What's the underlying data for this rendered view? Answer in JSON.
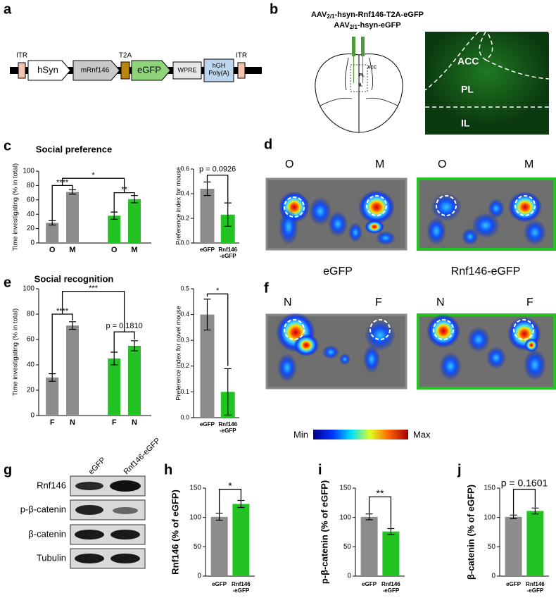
{
  "figure": {
    "panel_labels": [
      "a",
      "b",
      "c",
      "d",
      "e",
      "f",
      "g",
      "h",
      "i",
      "j"
    ],
    "a": {
      "elements": [
        "ITR",
        "hSyn",
        "mRnf146",
        "T2A",
        "eGFP",
        "WPRE",
        "hGH\nPoly(A)",
        "ITR"
      ]
    },
    "b": {
      "vectors": [
        {
          "prefix": "AAV",
          "sub": "2/1",
          "suffix": "-hsyn-Rnf146-T2A-eGFP"
        },
        {
          "prefix": "AAV",
          "sub": "2/1",
          "suffix": "-hsyn-eGFP"
        }
      ],
      "atlas_labels": [
        "ACC",
        "PL",
        "IL"
      ],
      "image_labels": [
        "ACC",
        "PL",
        "IL"
      ]
    },
    "d": {
      "labels": [
        "O",
        "M",
        "O",
        "M"
      ]
    },
    "f": {
      "groups": [
        "eGFP",
        "Rnf146-eGFP"
      ],
      "labels": [
        "N",
        "F",
        "N",
        "F"
      ],
      "colorbar": [
        "Min",
        "Max"
      ]
    },
    "g": {
      "lanes": [
        "eGFP",
        "Rnf146-eGFP"
      ],
      "rows": [
        "Rnf146",
        "p-β-catenin",
        "β-catenin",
        "Tubulin"
      ]
    }
  },
  "chart_data": [
    {
      "type": "bar",
      "title": "Social preference",
      "y_label": "Time investigating (% in total)",
      "categories": [
        "O",
        "M",
        "O",
        "M"
      ],
      "values": [
        28,
        71,
        38,
        61
      ],
      "errors": [
        3,
        3,
        5,
        5
      ],
      "colors": [
        "#8c8c8c",
        "#8c8c8c",
        "#22c322",
        "#22c322"
      ],
      "ylim": [
        0,
        100
      ],
      "yticks": [
        0,
        20,
        40,
        60,
        80,
        100
      ],
      "annotations": [
        "****",
        "**",
        "*"
      ]
    },
    {
      "type": "bar",
      "y_label": "Preference index for mouse",
      "categories": [
        "eGFP",
        "Rnf146\n-eGFP"
      ],
      "values": [
        0.44,
        0.23
      ],
      "errors": [
        0.055,
        0.095
      ],
      "colors": [
        "#8c8c8c",
        "#22c322"
      ],
      "ylim": [
        0,
        0.6
      ],
      "yticks": [
        {
          "value": 0,
          "label": "0.0"
        },
        0.2,
        0.4,
        0.6
      ],
      "annotations": [
        "p = 0.0926"
      ]
    },
    {
      "type": "bar",
      "title": "Social recognition",
      "y_label": "Time investigating (% in total)",
      "categories": [
        "F",
        "N",
        "F",
        "N"
      ],
      "values": [
        30,
        71,
        45,
        55
      ],
      "errors": [
        3,
        3,
        5,
        4
      ],
      "colors": [
        "#8c8c8c",
        "#8c8c8c",
        "#22c322",
        "#22c322"
      ],
      "ylim": [
        0,
        100
      ],
      "yticks": [
        0,
        20,
        40,
        60,
        80,
        100
      ],
      "annotations": [
        "****",
        "***",
        "p = 0.1810"
      ]
    },
    {
      "type": "bar",
      "y_label": "Preference index for novel mouse",
      "categories": [
        "eGFP",
        "Rnf146\n-eGFP"
      ],
      "values": [
        0.4,
        0.1
      ],
      "errors": [
        0.06,
        0.09
      ],
      "colors": [
        "#8c8c8c",
        "#22c322"
      ],
      "ylim": [
        0,
        0.5
      ],
      "yticks": [
        {
          "value": 0,
          "label": "0.0"
        },
        0.1,
        0.2,
        0.3,
        0.4,
        0.5
      ],
      "annotations": [
        "*"
      ]
    },
    {
      "type": "bar",
      "y_label": "Rnf146 (% of eGFP)",
      "categories": [
        "eGFP",
        "Rnf146\n-eGFP"
      ],
      "values": [
        101,
        123
      ],
      "errors": [
        6,
        6
      ],
      "colors": [
        "#8c8c8c",
        "#22c322"
      ],
      "ylim": [
        0,
        150
      ],
      "yticks": [
        0,
        50,
        100,
        150
      ],
      "annotations": [
        "*"
      ]
    },
    {
      "type": "bar",
      "y_label": "p-β-catenin (% of eGFP)",
      "categories": [
        "eGFP",
        "Rnf146\n-eGFP"
      ],
      "values": [
        101,
        76
      ],
      "errors": [
        5,
        5
      ],
      "colors": [
        "#8c8c8c",
        "#22c322"
      ],
      "ylim": [
        0,
        150
      ],
      "yticks": [
        0,
        50,
        100,
        150
      ],
      "annotations": [
        "**"
      ]
    },
    {
      "type": "bar",
      "y_label": "β-catenin (% of eGFP)",
      "categories": [
        "eGFP",
        "Rnf146\n-eGFP"
      ],
      "values": [
        101,
        111
      ],
      "errors": [
        3,
        5
      ],
      "colors": [
        "#8c8c8c",
        "#22c322"
      ],
      "ylim": [
        0,
        150
      ],
      "yticks": [
        0,
        50,
        100,
        150
      ],
      "annotations": [
        "p = 0.1601"
      ]
    }
  ]
}
